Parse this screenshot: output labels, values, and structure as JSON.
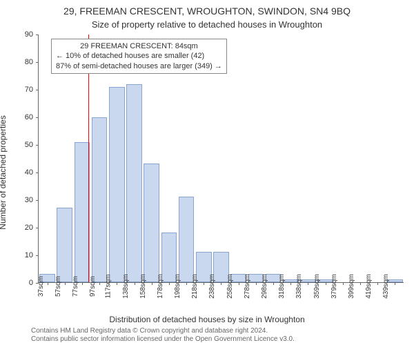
{
  "header": {
    "line1": "29, FREEMAN CRESCENT, WROUGHTON, SWINDON, SN4 9BQ",
    "line2": "Size of property relative to detached houses in Wroughton"
  },
  "axes": {
    "ylabel": "Number of detached properties",
    "xlabel": "Distribution of detached houses by size in Wroughton",
    "ylim": [
      0,
      90
    ],
    "ytick_step": 10,
    "xtick_unit": "sqm"
  },
  "chart": {
    "type": "histogram",
    "bin_start": 37,
    "bin_width": 20,
    "bins": [
      {
        "label": "37sqm",
        "value": 3
      },
      {
        "label": "57sqm",
        "value": 27
      },
      {
        "label": "77sqm",
        "value": 51
      },
      {
        "label": "97sqm",
        "value": 60
      },
      {
        "label": "117sqm",
        "value": 71
      },
      {
        "label": "138sqm",
        "value": 72
      },
      {
        "label": "158sqm",
        "value": 43
      },
      {
        "label": "178sqm",
        "value": 18
      },
      {
        "label": "198sqm",
        "value": 31
      },
      {
        "label": "218sqm",
        "value": 11
      },
      {
        "label": "238sqm",
        "value": 11
      },
      {
        "label": "258sqm",
        "value": 3
      },
      {
        "label": "278sqm",
        "value": 3
      },
      {
        "label": "298sqm",
        "value": 3
      },
      {
        "label": "318sqm",
        "value": 1
      },
      {
        "label": "338sqm",
        "value": 1
      },
      {
        "label": "359sqm",
        "value": 1
      },
      {
        "label": "379sqm",
        "value": 0
      },
      {
        "label": "399sqm",
        "value": 0
      },
      {
        "label": "419sqm",
        "value": 0
      },
      {
        "label": "439sqm",
        "value": 1
      }
    ],
    "bar_fill": "#c9d8ef",
    "bar_stroke": "#8aa4d0",
    "background": "#ffffff"
  },
  "marker": {
    "value_sqm": 84,
    "color": "#ff0000"
  },
  "annotation": {
    "line1": "29 FREEMAN CRESCENT: 84sqm",
    "line2": "← 10% of detached houses are smaller (42)",
    "line3": "87% of semi-detached houses are larger (349) →",
    "border_color": "#888888"
  },
  "attribution": {
    "line1": "Contains HM Land Registry data © Crown copyright and database right 2024.",
    "line2": "Contains public sector information licensed under the Open Government Licence v3.0."
  }
}
